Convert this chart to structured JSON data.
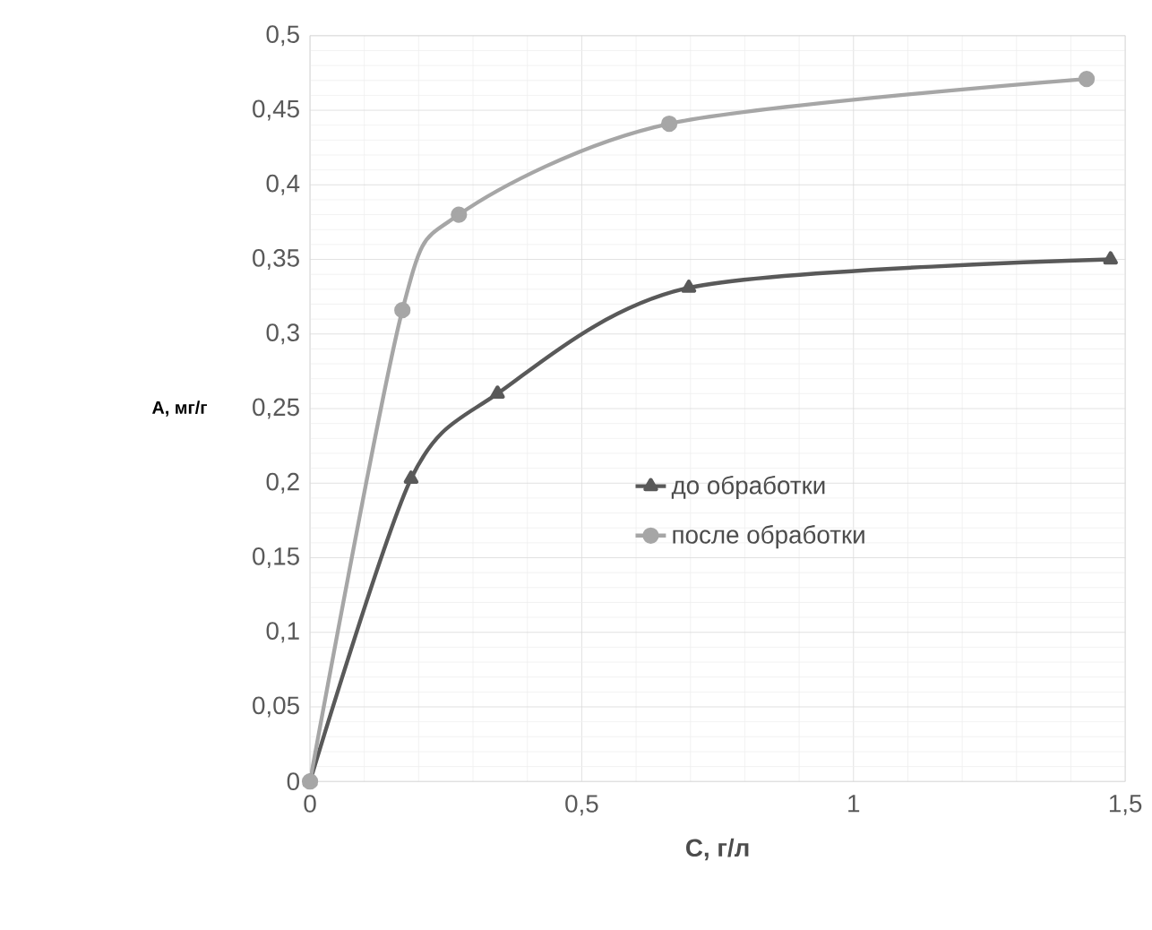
{
  "chart_data": {
    "type": "line",
    "xlabel": "C, г/л",
    "ylabel": "A, мг/г",
    "series": [
      {
        "name": "до обработки",
        "color": "#595959",
        "marker": "triangle",
        "x": [
          0,
          0.186,
          0.345,
          0.697,
          1.473
        ],
        "values": [
          0,
          0.203,
          0.26,
          0.331,
          0.35
        ]
      },
      {
        "name": "после обработки",
        "color": "#a6a6a6",
        "marker": "circle",
        "x": [
          0,
          0.17,
          0.274,
          0.661,
          1.429
        ],
        "values": [
          0,
          0.316,
          0.38,
          0.441,
          0.471
        ]
      }
    ],
    "xlim": [
      0,
      1.5
    ],
    "xticks": [
      0,
      {
        "value": 0.5,
        "label": "0,5"
      },
      1,
      {
        "value": 1.5,
        "label": "1,5"
      }
    ],
    "ylim": [
      0,
      0.5
    ],
    "yticks": [
      0,
      {
        "value": 0.05,
        "label": "0,05"
      },
      {
        "value": 0.1,
        "label": "0,1"
      },
      {
        "value": 0.15,
        "label": "0,15"
      },
      {
        "value": 0.2,
        "label": "0,2"
      },
      {
        "value": 0.25,
        "label": "0,25"
      },
      {
        "value": 0.3,
        "label": "0,3"
      },
      {
        "value": 0.35,
        "label": "0,35"
      },
      {
        "value": 0.4,
        "label": "0,4"
      },
      {
        "value": 0.45,
        "label": "0,45"
      },
      {
        "value": 0.5,
        "label": "0,5"
      }
    ],
    "grid": true,
    "legend": "right",
    "line_style": "solid"
  }
}
